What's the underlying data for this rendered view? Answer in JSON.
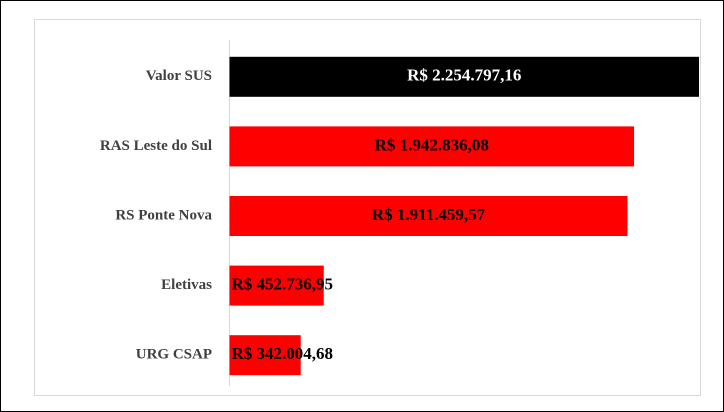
{
  "chart_data": {
    "type": "bar",
    "orientation": "horizontal",
    "categories": [
      "Valor SUS",
      "RAS Leste do Sul",
      "RS Ponte Nova",
      "Eletivas",
      "URG CSAP"
    ],
    "values": [
      2254797.16,
      1942836.08,
      1911459.57,
      452736.95,
      342004.68
    ],
    "value_labels": [
      "R$ 2.254.797,16",
      "R$ 1.942.836,08",
      "R$ 1.911.459,57",
      "R$ 452.736,95",
      "R$ 342.004,68"
    ],
    "colors": [
      "#000000",
      "#ff0000",
      "#ff0000",
      "#ff0000",
      "#ff0000"
    ]
  }
}
